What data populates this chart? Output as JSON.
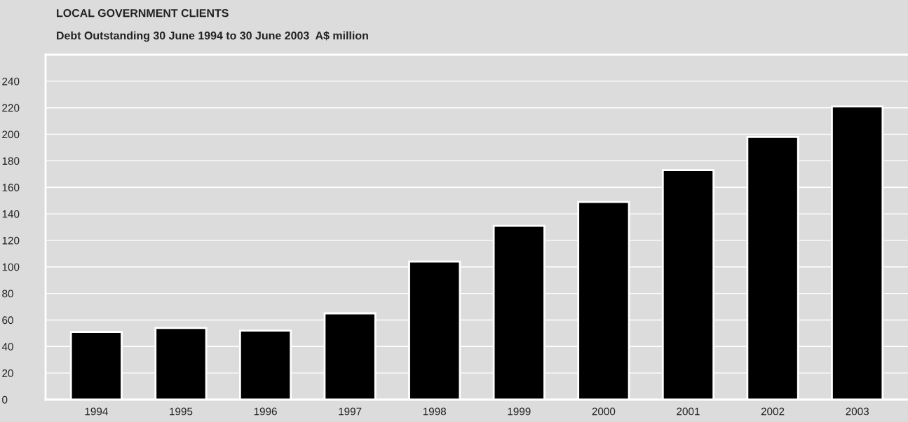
{
  "chart_data": {
    "type": "bar",
    "title": "LOCAL GOVERNMENT CLIENTS",
    "subtitle": "Debt Outstanding 30 June 1994 to 30 June 2003  A$ million",
    "categories": [
      "1994",
      "1995",
      "1996",
      "1997",
      "1998",
      "1999",
      "2000",
      "2001",
      "2002",
      "2003"
    ],
    "values": [
      51,
      54,
      52,
      65,
      104,
      131,
      149,
      173,
      198,
      221
    ],
    "color": "#000000",
    "ylim": [
      0,
      260
    ],
    "yticks": [
      0,
      20,
      40,
      60,
      80,
      100,
      120,
      140,
      160,
      180,
      200,
      220,
      240
    ],
    "grid": "y"
  }
}
